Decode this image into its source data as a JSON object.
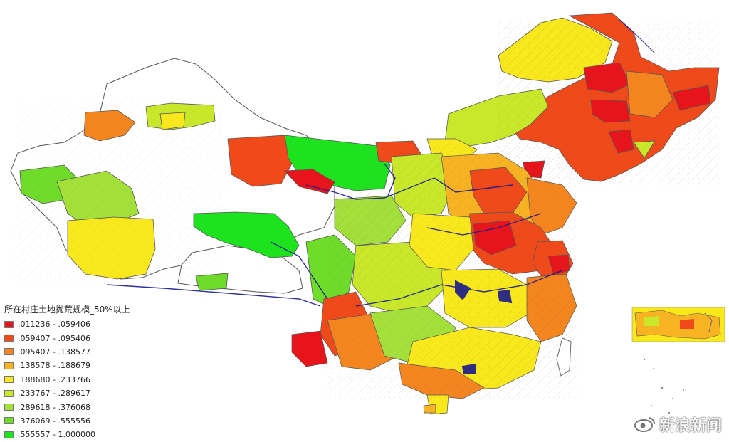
{
  "legend": {
    "title": "所在村庄土地抛荒规模_50%以上",
    "items": [
      {
        "label": ".011236 - .059406",
        "color": "#e8141b"
      },
      {
        "label": ".059407 - .095406",
        "color": "#f04a1a"
      },
      {
        "label": ".095407 - .138577",
        "color": "#f5861f"
      },
      {
        "label": ".138578 - .188679",
        "color": "#f7b321"
      },
      {
        "label": ".188680 - .233766",
        "color": "#f9e81b"
      },
      {
        "label": ".233767 - .289617",
        "color": "#c9e82a"
      },
      {
        "label": ".289618 - .376068",
        "color": "#a3e03a"
      },
      {
        "label": ".376069 - .555556",
        "color": "#6fdc2a"
      },
      {
        "label": ".555557 - 1.000000",
        "color": "#1de31f"
      }
    ]
  },
  "watermark": {
    "text": "新浪新闻",
    "icon": "weibo-eye-icon"
  },
  "map": {
    "river_color": "#1a1a8c",
    "border_color": "#555555",
    "no_data_color": "#ffffff"
  }
}
